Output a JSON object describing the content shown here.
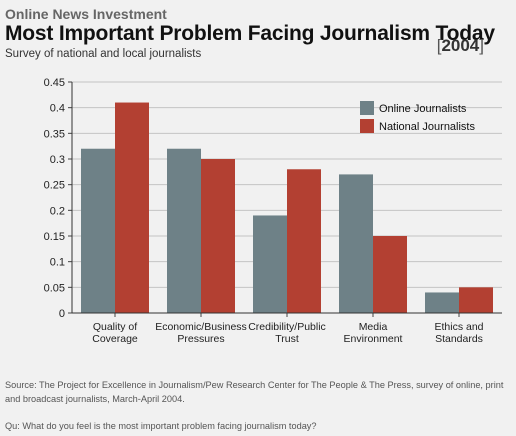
{
  "header": {
    "kicker": "Online News Investment",
    "title": "Most Important Problem Facing Journalism Today",
    "subtitle": "Survey of national and local journalists",
    "year_open": "[",
    "year": "2004",
    "year_close": "]"
  },
  "chart_data": {
    "type": "bar",
    "categories": [
      [
        "Quality of",
        "Coverage"
      ],
      [
        "Economic/Business",
        "Pressures"
      ],
      [
        "Credibility/Public",
        "Trust"
      ],
      [
        "Media",
        "Environment"
      ],
      [
        "Ethics and",
        "Standards"
      ]
    ],
    "series": [
      {
        "name": "Online Journalists",
        "color": "#6e8187",
        "values": [
          0.32,
          0.32,
          0.19,
          0.27,
          0.04
        ]
      },
      {
        "name": "National Journalists",
        "color": "#b34032",
        "values": [
          0.41,
          0.3,
          0.28,
          0.15,
          0.05
        ]
      }
    ],
    "ylim": [
      0,
      0.45
    ],
    "yticks": [
      "0",
      "0.05",
      "0.1",
      "0.15",
      "0.2",
      "0.25",
      "0.3",
      "0.35",
      "0.4",
      "0.45"
    ],
    "grid": true,
    "legend": "top-right"
  },
  "footer": {
    "source": "Source: The Project for Excellence in Journalism/Pew Research Center for The People & The Press, survey of online, print and broadcast journalists, March-April 2004.",
    "question": "Qu: What do you feel is the most important problem facing journalism today?"
  }
}
